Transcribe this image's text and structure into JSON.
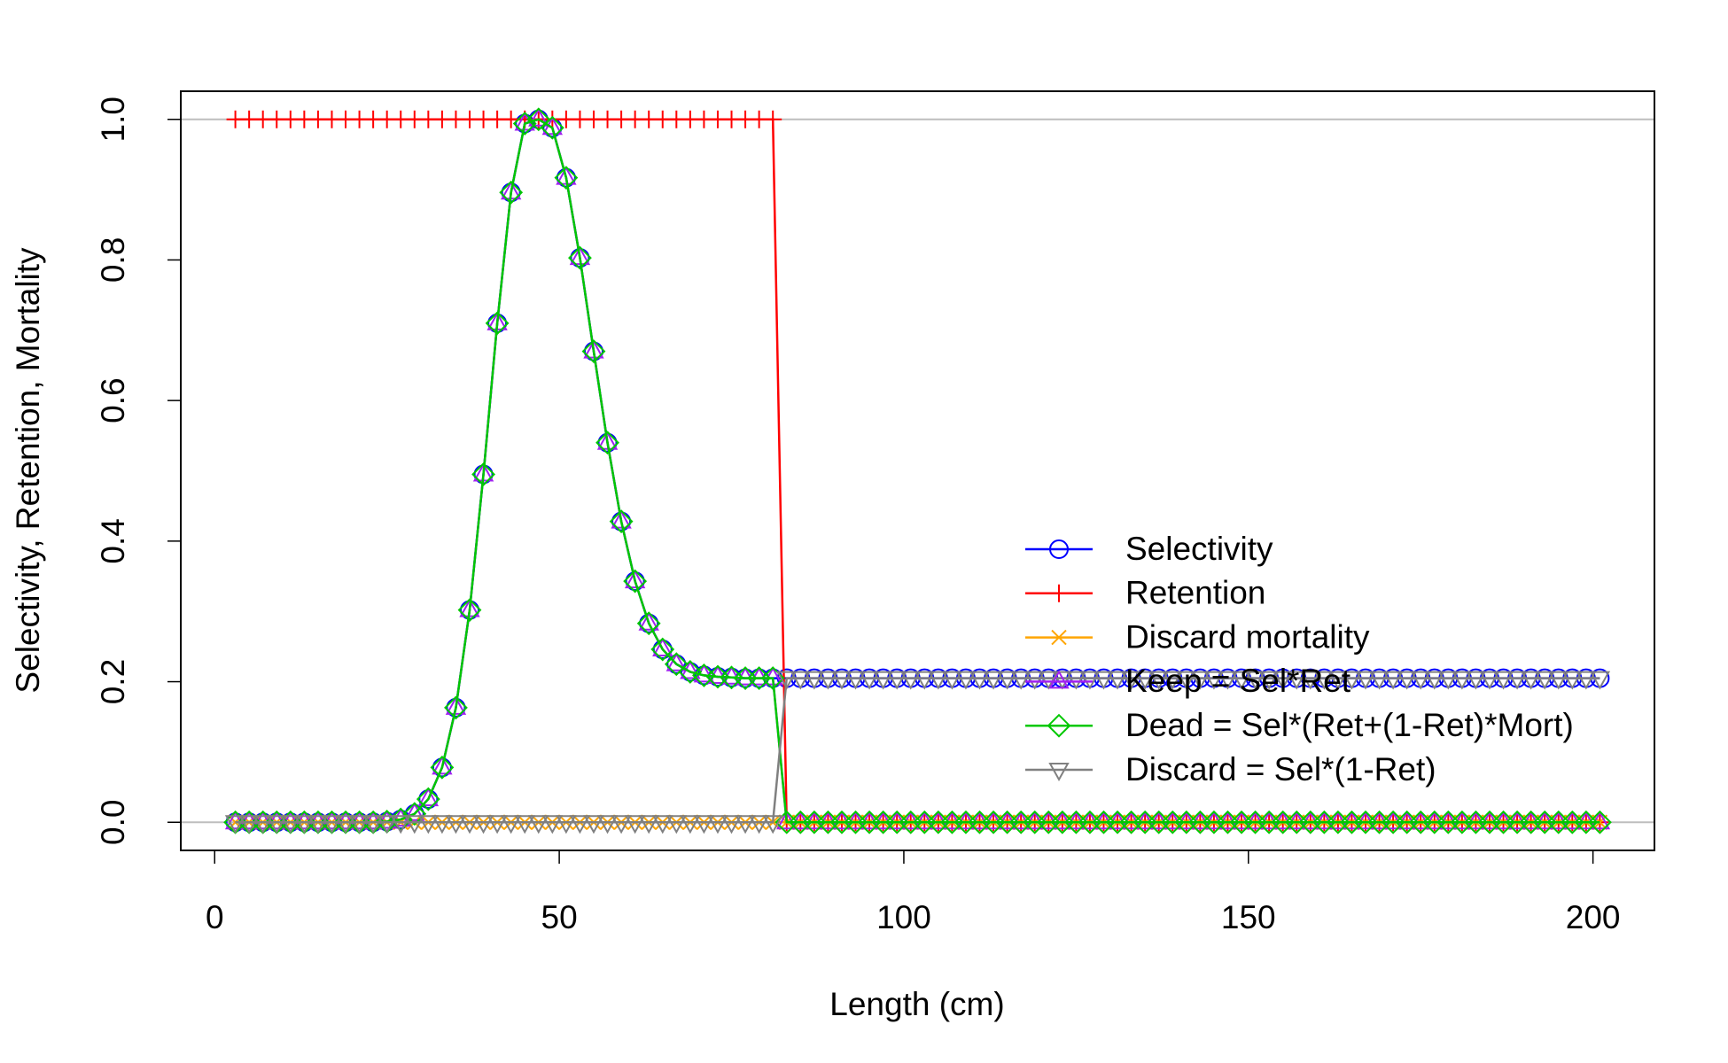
{
  "chart_data": {
    "type": "line",
    "xlabel": "Length (cm)",
    "ylabel": "Selectivity, Retention, Mortality",
    "x": [
      3,
      5,
      7,
      9,
      11,
      13,
      15,
      17,
      19,
      21,
      23,
      25,
      27,
      29,
      31,
      33,
      35,
      37,
      39,
      41,
      43,
      45,
      47,
      49,
      51,
      53,
      55,
      57,
      59,
      61,
      63,
      65,
      67,
      69,
      71,
      73,
      75,
      77,
      79,
      81,
      83,
      85,
      87,
      89,
      91,
      93,
      95,
      97,
      99,
      101,
      103,
      105,
      107,
      109,
      111,
      113,
      115,
      117,
      119,
      121,
      123,
      125,
      127,
      129,
      131,
      133,
      135,
      137,
      139,
      141,
      143,
      145,
      147,
      149,
      151,
      153,
      155,
      157,
      159,
      161,
      163,
      165,
      167,
      169,
      171,
      173,
      175,
      177,
      179,
      181,
      183,
      185,
      187,
      189,
      191,
      193,
      195,
      197,
      199,
      201
    ],
    "series": [
      {
        "name": "Selectivity",
        "color": "#0000ff",
        "marker": "circle",
        "values": [
          0,
          0,
          0,
          0,
          0,
          0,
          0,
          0,
          0,
          0,
          0,
          0.001,
          0.004,
          0.012,
          0.033,
          0.078,
          0.163,
          0.302,
          0.495,
          0.71,
          0.896,
          0.994,
          1,
          0.988,
          0.917,
          0.803,
          0.67,
          0.54,
          0.428,
          0.343,
          0.283,
          0.246,
          0.225,
          0.214,
          0.209,
          0.207,
          0.206,
          0.205,
          0.205,
          0.205,
          0.205,
          0.205,
          0.205,
          0.205,
          0.205,
          0.205,
          0.205,
          0.205,
          0.205,
          0.205,
          0.205,
          0.205,
          0.205,
          0.205,
          0.205,
          0.205,
          0.205,
          0.205,
          0.205,
          0.205,
          0.205,
          0.205,
          0.205,
          0.205,
          0.205,
          0.205,
          0.205,
          0.205,
          0.205,
          0.205,
          0.205,
          0.205,
          0.205,
          0.205,
          0.205,
          0.205,
          0.205,
          0.205,
          0.205,
          0.205,
          0.205,
          0.205,
          0.205,
          0.205,
          0.205,
          0.205,
          0.205,
          0.205,
          0.205,
          0.205,
          0.205,
          0.205,
          0.205,
          0.205,
          0.205,
          0.205,
          0.205,
          0.205,
          0.205,
          0.205
        ]
      },
      {
        "name": "Retention",
        "color": "#ff0000",
        "marker": "plus",
        "values": [
          1,
          1,
          1,
          1,
          1,
          1,
          1,
          1,
          1,
          1,
          1,
          1,
          1,
          1,
          1,
          1,
          1,
          1,
          1,
          1,
          1,
          1,
          1,
          1,
          1,
          1,
          1,
          1,
          1,
          1,
          1,
          1,
          1,
          1,
          1,
          1,
          1,
          1,
          1,
          1,
          0,
          0,
          0,
          0,
          0,
          0,
          0,
          0,
          0,
          0,
          0,
          0,
          0,
          0,
          0,
          0,
          0,
          0,
          0,
          0,
          0,
          0,
          0,
          0,
          0,
          0,
          0,
          0,
          0,
          0,
          0,
          0,
          0,
          0,
          0,
          0,
          0,
          0,
          0,
          0,
          0,
          0,
          0,
          0,
          0,
          0,
          0,
          0,
          0,
          0,
          0,
          0,
          0,
          0,
          0,
          0,
          0,
          0,
          0,
          0
        ]
      },
      {
        "name": "Discard mortality",
        "color": "#ffa500",
        "marker": "cross",
        "values": [
          0,
          0,
          0,
          0,
          0,
          0,
          0,
          0,
          0,
          0,
          0,
          0,
          0,
          0,
          0,
          0,
          0,
          0,
          0,
          0,
          0,
          0,
          0,
          0,
          0,
          0,
          0,
          0,
          0,
          0,
          0,
          0,
          0,
          0,
          0,
          0,
          0,
          0,
          0,
          0,
          0,
          0,
          0,
          0,
          0,
          0,
          0,
          0,
          0,
          0,
          0,
          0,
          0,
          0,
          0,
          0,
          0,
          0,
          0,
          0,
          0,
          0,
          0,
          0,
          0,
          0,
          0,
          0,
          0,
          0,
          0,
          0,
          0,
          0,
          0,
          0,
          0,
          0,
          0,
          0,
          0,
          0,
          0,
          0,
          0,
          0,
          0,
          0,
          0,
          0,
          0,
          0,
          0,
          0,
          0,
          0,
          0,
          0,
          0,
          0
        ]
      },
      {
        "name": "Keep = Sel*Ret",
        "color": "#a020f0",
        "marker": "triangle",
        "values": [
          0,
          0,
          0,
          0,
          0,
          0,
          0,
          0,
          0,
          0,
          0,
          0.001,
          0.004,
          0.012,
          0.033,
          0.078,
          0.163,
          0.302,
          0.495,
          0.71,
          0.896,
          0.994,
          1,
          0.988,
          0.917,
          0.803,
          0.67,
          0.54,
          0.428,
          0.343,
          0.283,
          0.246,
          0.225,
          0.214,
          0.209,
          0.207,
          0.206,
          0.205,
          0.205,
          0.205,
          0,
          0,
          0,
          0,
          0,
          0,
          0,
          0,
          0,
          0,
          0,
          0,
          0,
          0,
          0,
          0,
          0,
          0,
          0,
          0,
          0,
          0,
          0,
          0,
          0,
          0,
          0,
          0,
          0,
          0,
          0,
          0,
          0,
          0,
          0,
          0,
          0,
          0,
          0,
          0,
          0,
          0,
          0,
          0,
          0,
          0,
          0,
          0,
          0,
          0,
          0,
          0,
          0,
          0,
          0,
          0,
          0,
          0,
          0,
          0
        ]
      },
      {
        "name": "Dead = Sel*(Ret+(1-Ret)*Mort)",
        "color": "#00c800",
        "marker": "diamond",
        "values": [
          0,
          0,
          0,
          0,
          0,
          0,
          0,
          0,
          0,
          0,
          0,
          0.001,
          0.004,
          0.012,
          0.033,
          0.078,
          0.163,
          0.302,
          0.495,
          0.71,
          0.896,
          0.994,
          1,
          0.988,
          0.917,
          0.803,
          0.67,
          0.54,
          0.428,
          0.343,
          0.283,
          0.246,
          0.225,
          0.214,
          0.209,
          0.207,
          0.206,
          0.205,
          0.205,
          0.205,
          0,
          0,
          0,
          0,
          0,
          0,
          0,
          0,
          0,
          0,
          0,
          0,
          0,
          0,
          0,
          0,
          0,
          0,
          0,
          0,
          0,
          0,
          0,
          0,
          0,
          0,
          0,
          0,
          0,
          0,
          0,
          0,
          0,
          0,
          0,
          0,
          0,
          0,
          0,
          0,
          0,
          0,
          0,
          0,
          0,
          0,
          0,
          0,
          0,
          0,
          0,
          0,
          0,
          0,
          0,
          0,
          0,
          0,
          0,
          0
        ]
      },
      {
        "name": "Discard = Sel*(1-Ret)",
        "color": "#808080",
        "marker": "triangle-down",
        "values": [
          0,
          0,
          0,
          0,
          0,
          0,
          0,
          0,
          0,
          0,
          0,
          0,
          0,
          0,
          0,
          0,
          0,
          0,
          0,
          0,
          0,
          0,
          0,
          0,
          0,
          0,
          0,
          0,
          0,
          0,
          0,
          0,
          0,
          0,
          0,
          0,
          0,
          0,
          0,
          0,
          0.205,
          0.205,
          0.205,
          0.205,
          0.205,
          0.205,
          0.205,
          0.205,
          0.205,
          0.205,
          0.205,
          0.205,
          0.205,
          0.205,
          0.205,
          0.205,
          0.205,
          0.205,
          0.205,
          0.205,
          0.205,
          0.205,
          0.205,
          0.205,
          0.205,
          0.205,
          0.205,
          0.205,
          0.205,
          0.205,
          0.205,
          0.205,
          0.205,
          0.205,
          0.205,
          0.205,
          0.205,
          0.205,
          0.205,
          0.205,
          0.205,
          0.205,
          0.205,
          0.205,
          0.205,
          0.205,
          0.205,
          0.205,
          0.205,
          0.205,
          0.205,
          0.205,
          0.205,
          0.205,
          0.205,
          0.205,
          0.205,
          0.205,
          0.205,
          0.205
        ]
      }
    ],
    "xlim": [
      -4.92,
      208.92
    ],
    "ylim": [
      -0.04,
      1.04
    ],
    "xticks": [
      0,
      50,
      100,
      150,
      200
    ],
    "yticks": [
      {
        "value": 0,
        "label": "0.0"
      },
      {
        "value": 0.2,
        "label": "0.2"
      },
      {
        "value": 0.4,
        "label": "0.4"
      },
      {
        "value": 0.6,
        "label": "0.6"
      },
      {
        "value": 0.8,
        "label": "0.8"
      },
      {
        "value": 1,
        "label": "1.0"
      }
    ],
    "hlines": [
      0,
      1
    ],
    "hline_color": "#bebebe",
    "legend": "right"
  }
}
